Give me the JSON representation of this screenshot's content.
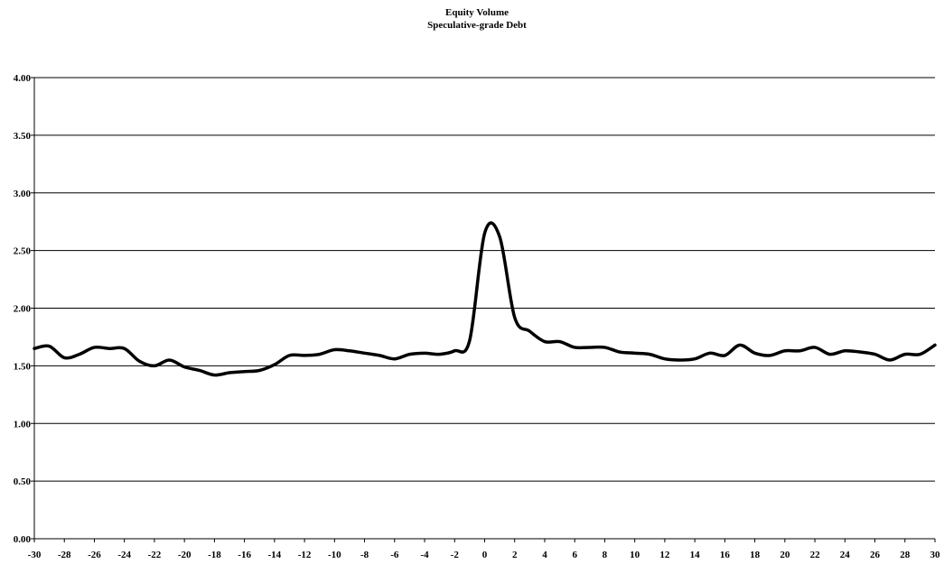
{
  "chart_data": {
    "type": "line",
    "title": "Equity Volume",
    "subtitle": "Speculative-grade Debt",
    "xlabel": "",
    "ylabel": "",
    "xlim": [
      -30,
      30
    ],
    "ylim": [
      0,
      4
    ],
    "grid": true,
    "legend": "none",
    "y_ticks": [
      "0.00",
      "0.50",
      "1.00",
      "1.50",
      "2.00",
      "2.50",
      "3.00",
      "3.50",
      "4.00"
    ],
    "x_ticks": [
      "-30",
      "-28",
      "-26",
      "-24",
      "-22",
      "-20",
      "-18",
      "-16",
      "-14",
      "-12",
      "-10",
      "-8",
      "-6",
      "-4",
      "-2",
      "0",
      "2",
      "4",
      "6",
      "8",
      "10",
      "12",
      "14",
      "16",
      "18",
      "20",
      "22",
      "24",
      "26",
      "28",
      "30"
    ],
    "series": [
      {
        "x": [
          -30,
          -29,
          -28,
          -27,
          -26,
          -25,
          -24,
          -23,
          -22,
          -21,
          -20,
          -19,
          -18,
          -17,
          -16,
          -15,
          -14,
          -13,
          -12,
          -11,
          -10,
          -9,
          -8,
          -7,
          -6,
          -5,
          -4,
          -3,
          -2,
          -1,
          0,
          1,
          2,
          3,
          4,
          5,
          6,
          7,
          8,
          9,
          10,
          11,
          12,
          13,
          14,
          15,
          16,
          17,
          18,
          19,
          20,
          21,
          22,
          23,
          24,
          25,
          26,
          27,
          28,
          29,
          30
        ],
        "values": [
          1.65,
          1.67,
          1.57,
          1.6,
          1.66,
          1.65,
          1.65,
          1.54,
          1.5,
          1.55,
          1.49,
          1.46,
          1.42,
          1.44,
          1.45,
          1.46,
          1.51,
          1.59,
          1.59,
          1.6,
          1.64,
          1.63,
          1.61,
          1.59,
          1.56,
          1.6,
          1.61,
          1.6,
          1.63,
          1.72,
          2.65,
          2.62,
          1.92,
          1.8,
          1.71,
          1.71,
          1.66,
          1.66,
          1.66,
          1.62,
          1.61,
          1.6,
          1.56,
          1.55,
          1.56,
          1.61,
          1.59,
          1.68,
          1.61,
          1.59,
          1.63,
          1.63,
          1.66,
          1.6,
          1.63,
          1.62,
          1.6,
          1.55,
          1.6,
          1.6,
          1.68
        ],
        "color": "#000000"
      }
    ]
  }
}
